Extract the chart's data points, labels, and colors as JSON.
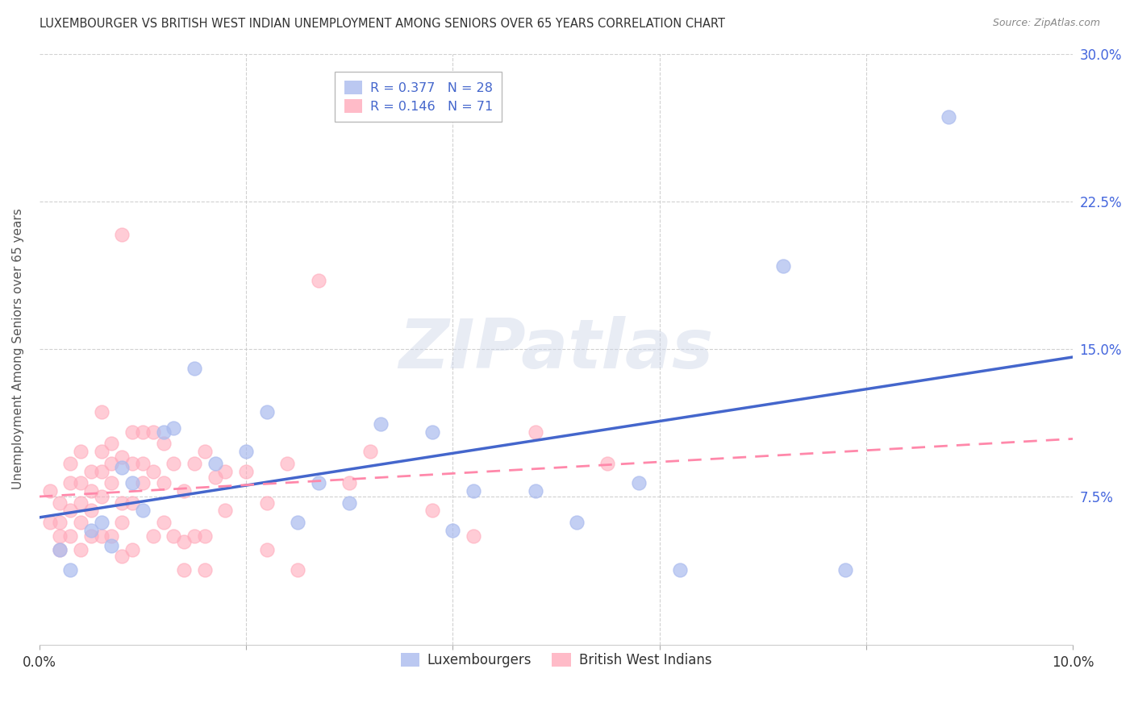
{
  "title": "LUXEMBOURGER VS BRITISH WEST INDIAN UNEMPLOYMENT AMONG SENIORS OVER 65 YEARS CORRELATION CHART",
  "source": "Source: ZipAtlas.com",
  "ylabel": "Unemployment Among Seniors over 65 years",
  "xlim": [
    0.0,
    0.1
  ],
  "ylim": [
    0.0,
    0.3
  ],
  "xtick_positions": [
    0.0,
    0.02,
    0.04,
    0.06,
    0.08,
    0.1
  ],
  "xticklabels": [
    "0.0%",
    "",
    "",
    "",
    "",
    "10.0%"
  ],
  "ytick_positions": [
    0.0,
    0.075,
    0.15,
    0.225,
    0.3
  ],
  "yticklabels": [
    "",
    "7.5%",
    "15.0%",
    "22.5%",
    "30.0%"
  ],
  "watermark_text": "ZIPatlas",
  "blue_R": "0.377",
  "blue_N": "28",
  "pink_R": "0.146",
  "pink_N": "71",
  "blue_label": "Luxembourgers",
  "pink_label": "British West Indians",
  "blue_scatter_color": "#aabbee",
  "pink_scatter_color": "#ffaabb",
  "blue_line_color": "#4466cc",
  "pink_line_color": "#ff88aa",
  "legend_box_blue": "#aabbee",
  "legend_box_pink": "#ffaabb",
  "background_color": "#ffffff",
  "grid_color": "#cccccc",
  "title_color": "#333333",
  "source_color": "#888888",
  "axis_label_color": "#4466dd",
  "ylabel_color": "#555555",
  "luxembourgers_x": [
    0.002,
    0.003,
    0.005,
    0.006,
    0.007,
    0.008,
    0.009,
    0.01,
    0.012,
    0.013,
    0.015,
    0.017,
    0.02,
    0.022,
    0.025,
    0.027,
    0.03,
    0.033,
    0.038,
    0.04,
    0.042,
    0.048,
    0.052,
    0.058,
    0.062,
    0.072,
    0.078,
    0.088
  ],
  "luxembourgers_y": [
    0.048,
    0.038,
    0.058,
    0.062,
    0.05,
    0.09,
    0.082,
    0.068,
    0.108,
    0.11,
    0.14,
    0.092,
    0.098,
    0.118,
    0.062,
    0.082,
    0.072,
    0.112,
    0.108,
    0.058,
    0.078,
    0.078,
    0.062,
    0.082,
    0.038,
    0.192,
    0.038,
    0.268
  ],
  "bwi_x": [
    0.001,
    0.001,
    0.002,
    0.002,
    0.002,
    0.002,
    0.003,
    0.003,
    0.003,
    0.003,
    0.004,
    0.004,
    0.004,
    0.004,
    0.004,
    0.005,
    0.005,
    0.005,
    0.005,
    0.006,
    0.006,
    0.006,
    0.006,
    0.006,
    0.007,
    0.007,
    0.007,
    0.007,
    0.008,
    0.008,
    0.008,
    0.008,
    0.008,
    0.009,
    0.009,
    0.009,
    0.009,
    0.01,
    0.01,
    0.01,
    0.011,
    0.011,
    0.011,
    0.012,
    0.012,
    0.012,
    0.013,
    0.013,
    0.014,
    0.014,
    0.014,
    0.015,
    0.015,
    0.016,
    0.016,
    0.016,
    0.017,
    0.018,
    0.018,
    0.02,
    0.022,
    0.022,
    0.024,
    0.025,
    0.027,
    0.03,
    0.032,
    0.038,
    0.042,
    0.048,
    0.055
  ],
  "bwi_y": [
    0.078,
    0.062,
    0.072,
    0.062,
    0.055,
    0.048,
    0.092,
    0.082,
    0.068,
    0.055,
    0.098,
    0.082,
    0.072,
    0.062,
    0.048,
    0.088,
    0.078,
    0.068,
    0.055,
    0.118,
    0.098,
    0.088,
    0.075,
    0.055,
    0.102,
    0.092,
    0.082,
    0.055,
    0.072,
    0.062,
    0.045,
    0.208,
    0.095,
    0.108,
    0.092,
    0.072,
    0.048,
    0.108,
    0.092,
    0.082,
    0.108,
    0.088,
    0.055,
    0.102,
    0.082,
    0.062,
    0.092,
    0.055,
    0.078,
    0.052,
    0.038,
    0.092,
    0.055,
    0.098,
    0.055,
    0.038,
    0.085,
    0.088,
    0.068,
    0.088,
    0.072,
    0.048,
    0.092,
    0.038,
    0.185,
    0.082,
    0.098,
    0.068,
    0.055,
    0.108,
    0.092
  ]
}
